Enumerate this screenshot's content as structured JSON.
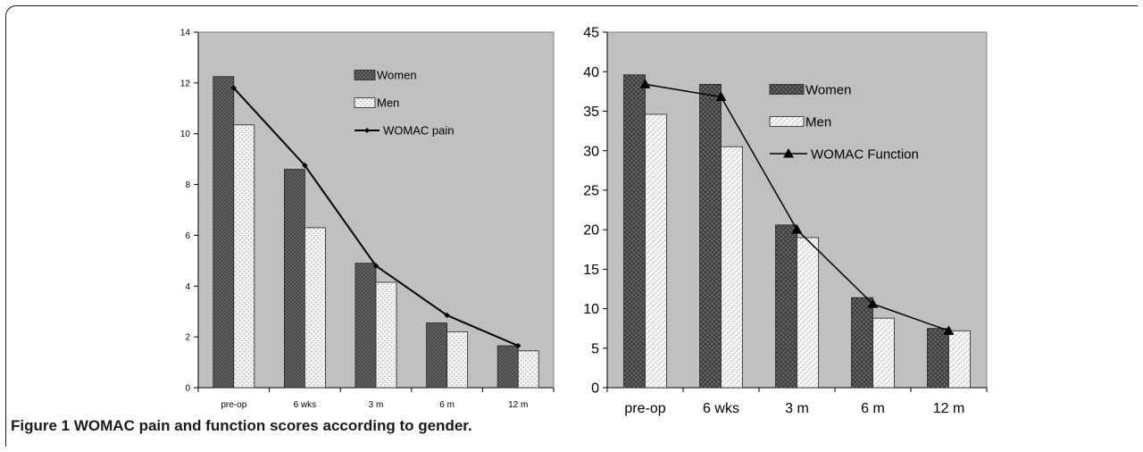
{
  "caption": {
    "label": "Figure 1",
    "text": "WOMAC pain and function scores according to gender."
  },
  "colors": {
    "plot_bg": "#c0c0c0",
    "women_fill": "#6b6b6b",
    "men_fill": "#ebebeb",
    "line": "#000000"
  },
  "chart_data": [
    {
      "type": "bar",
      "title": "",
      "xlabel": "",
      "ylabel": "",
      "categories": [
        "pre-op",
        "6 wks",
        "3 m",
        "6 m",
        "12 m"
      ],
      "ylim": [
        0,
        14
      ],
      "yticks": [
        0,
        2,
        4,
        6,
        8,
        10,
        12,
        14
      ],
      "grid": false,
      "legend_position": "top-right",
      "series": [
        {
          "name": "Women",
          "kind": "bar",
          "values": [
            12.25,
            8.6,
            4.9,
            2.55,
            1.65
          ]
        },
        {
          "name": "Men",
          "kind": "bar",
          "values": [
            10.35,
            6.3,
            4.15,
            2.2,
            1.45
          ]
        },
        {
          "name": "WOMAC pain",
          "kind": "line",
          "marker": "diamond",
          "values": [
            11.8,
            8.75,
            4.8,
            2.85,
            1.65
          ]
        }
      ]
    },
    {
      "type": "bar",
      "title": "",
      "xlabel": "",
      "ylabel": "",
      "categories": [
        "pre-op",
        "6 wks",
        "3 m",
        "6 m",
        "12 m"
      ],
      "ylim": [
        0,
        45
      ],
      "yticks": [
        0,
        5,
        10,
        15,
        20,
        25,
        30,
        35,
        40,
        45
      ],
      "grid": false,
      "legend_position": "top-right",
      "series": [
        {
          "name": "Women",
          "kind": "bar",
          "values": [
            39.6,
            38.4,
            20.6,
            11.4,
            7.5
          ]
        },
        {
          "name": "Men",
          "kind": "bar",
          "values": [
            34.6,
            30.5,
            19.0,
            8.8,
            7.2
          ]
        },
        {
          "name": "WOMAC Function",
          "kind": "line",
          "marker": "triangle",
          "values": [
            38.4,
            36.8,
            20.0,
            10.6,
            7.2
          ]
        }
      ]
    }
  ]
}
